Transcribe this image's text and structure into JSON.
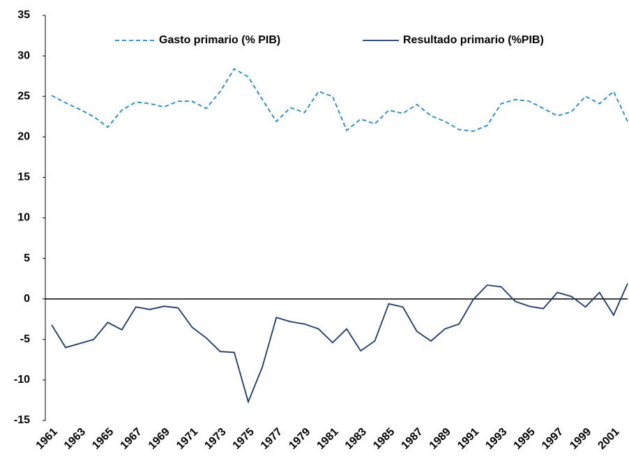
{
  "chart_data": {
    "type": "line",
    "categories": [
      "1961",
      null,
      "1963",
      null,
      "1965",
      null,
      "1967",
      null,
      "1969",
      null,
      "1971",
      null,
      "1973",
      null,
      "1975",
      null,
      "1977",
      null,
      "1979",
      null,
      "1981",
      null,
      "1983",
      null,
      "1985",
      null,
      "1987",
      null,
      "1989",
      null,
      "1991",
      null,
      "1993",
      null,
      "1995",
      null,
      "1997",
      null,
      "1999",
      null,
      "2001",
      null
    ],
    "series": [
      {
        "name": "Gasto primario (% PIB)",
        "color": "#1f8ac9",
        "dashed": true,
        "values": [
          25.1,
          24.2,
          23.4,
          22.5,
          21.2,
          23.3,
          24.3,
          24.1,
          23.7,
          24.4,
          24.4,
          23.5,
          25.6,
          28.4,
          27.4,
          24.6,
          21.9,
          23.6,
          23.0,
          25.6,
          25.0,
          20.8,
          22.2,
          21.6,
          23.3,
          22.9,
          24.0,
          22.6,
          21.9,
          20.9,
          20.7,
          21.4,
          24.1,
          24.6,
          24.4,
          23.5,
          22.6,
          23.1,
          25.0,
          24.1,
          25.6,
          21.9
        ]
      },
      {
        "name": "Resultado primario (%PIB)",
        "color": "#1b3a6b",
        "dashed": false,
        "values": [
          -3.2,
          -6.0,
          -5.5,
          -5.0,
          -2.9,
          -3.8,
          -1.0,
          -1.3,
          -0.9,
          -1.1,
          -3.5,
          -4.8,
          -6.5,
          -6.6,
          -12.7,
          -8.4,
          -2.3,
          -2.8,
          -3.1,
          -3.7,
          -5.4,
          -3.7,
          -6.4,
          -5.2,
          -0.6,
          -1.0,
          -4.0,
          -5.2,
          -3.7,
          -3.1,
          -0.1,
          1.7,
          1.5,
          -0.3,
          -0.9,
          -1.2,
          0.8,
          0.3,
          -1.0,
          0.8,
          -2.0,
          1.9
        ]
      }
    ],
    "ylim": [
      -15,
      35
    ],
    "yticks": [
      -15,
      -10,
      -5,
      0,
      5,
      10,
      15,
      20,
      25,
      30,
      35
    ],
    "grid": false,
    "zero_line": true,
    "legend": "top"
  }
}
